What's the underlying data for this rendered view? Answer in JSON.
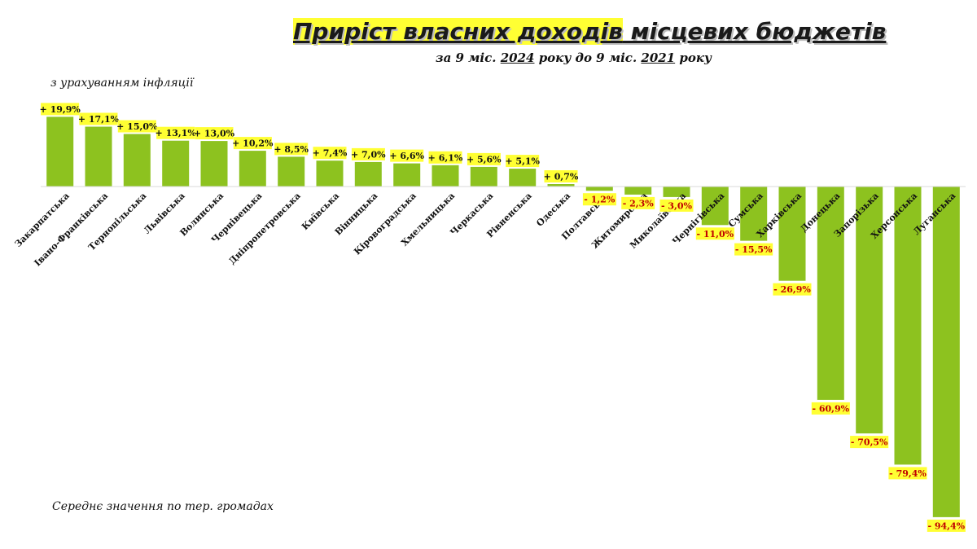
{
  "header": {
    "title_highlight": "Приріст власних доходів",
    "title_rest": " місцевих бюджетів",
    "subtitle_pre": "за 9 міс. ",
    "subtitle_year1": "2024",
    "subtitle_mid": " року до 9 міс. ",
    "subtitle_year2": "2021",
    "subtitle_post": " року",
    "note_top": "з урахуванням інфляції",
    "note_bottom": "Середнє значення по тер. громадах"
  },
  "colors": {
    "bar": "#8dc21f",
    "label_bg": "#ffff33",
    "positive_text": "#111111",
    "negative_text": "#c00000"
  },
  "chart_data": {
    "type": "bar",
    "categories": [
      "Закарпатська",
      "Івано-Франківська",
      "Тернопільська",
      "Львівська",
      "Волинська",
      "Чернівецька",
      "Дніпропетровська",
      "Київська",
      "Вінницька",
      "Кіровоградська",
      "Хмельницька",
      "Черкаська",
      "Рівненська",
      "Одеська",
      "Полтавська",
      "Житомирська",
      "Миколаївська",
      "Чернігівська",
      "Сумська",
      "Харківська",
      "Донецька",
      "Запорізька",
      "Херсонська",
      "Луганська"
    ],
    "values": [
      19.9,
      17.1,
      15.0,
      13.1,
      13.0,
      10.2,
      8.5,
      7.4,
      7.0,
      6.6,
      6.1,
      5.6,
      5.1,
      0.7,
      -1.2,
      -2.3,
      -3.0,
      -11.0,
      -15.5,
      -26.9,
      -60.9,
      -70.5,
      -79.4,
      -94.4
    ],
    "value_labels": [
      "+ 19,9%",
      "+ 17,1%",
      "+ 15,0%",
      "+ 13,1%",
      "+ 13,0%",
      "+ 10,2%",
      "+ 8,5%",
      "+ 7,4%",
      "+ 7,0%",
      "+ 6,6%",
      "+ 6,1%",
      "+ 5,6%",
      "+ 5,1%",
      "+ 0,7%",
      "- 1,2%",
      "- 2,3%",
      "- 3,0%",
      "- 11,0%",
      "- 15,5%",
      "- 26,9%",
      "- 60,9%",
      "- 70,5%",
      "- 79,4%",
      "- 94,4%"
    ],
    "ylim": [
      -95,
      25
    ],
    "grid": false,
    "legend": "none"
  }
}
